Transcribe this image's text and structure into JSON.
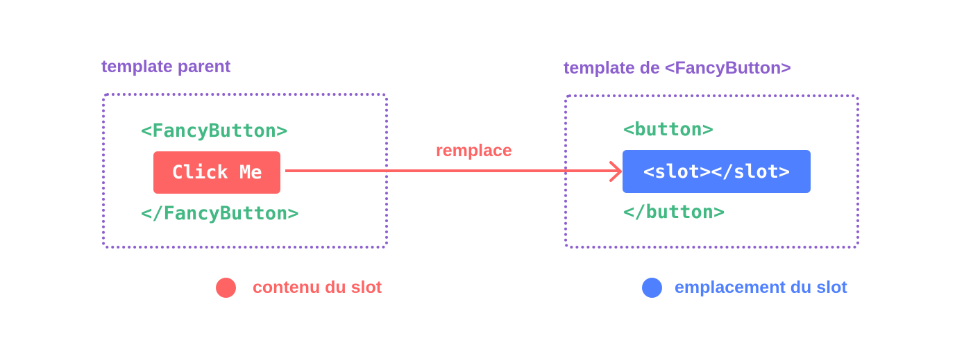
{
  "parent": {
    "title": "template parent",
    "open_tag": "<FancyButton>",
    "content": "Click Me",
    "close_tag": "</FancyButton>"
  },
  "child": {
    "title": "template de <FancyButton>",
    "open_tag": "<button>",
    "slot": "<slot></slot>",
    "close_tag": "</button>"
  },
  "arrow": {
    "label": "remplace"
  },
  "legend": [
    {
      "label": "contenu du slot",
      "color": "#ff6464"
    },
    {
      "label": "emplacement du slot",
      "color": "#4f80ff"
    }
  ],
  "colors": {
    "title": "#8c5fcf",
    "code": "#42b883",
    "slot_content": "#ff6464",
    "slot_outlet": "#4f80ff"
  }
}
